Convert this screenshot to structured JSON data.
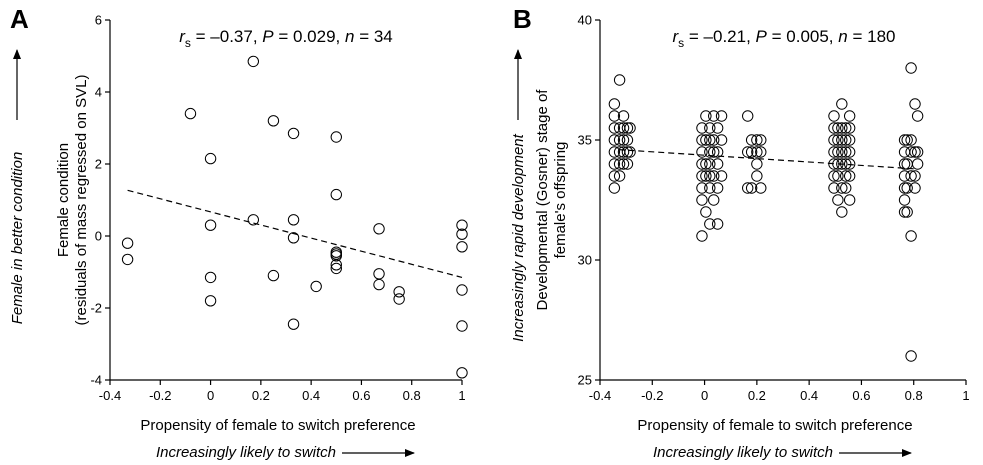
{
  "chart_data": [
    {
      "type": "scatter",
      "panel_label": "A",
      "stat_text": "r_s = –0.37, P = 0.029, n = 34",
      "stat": {
        "r_s": "–0.37",
        "P": "0.029",
        "n": "34"
      },
      "xlabel": "Propensity of female to switch preference",
      "xlabel_arrow": "Increasingly likely to switch",
      "ylabel_lines": [
        "Female condition",
        "(residuals of mass regressed on SVL)"
      ],
      "ylabel_arrow": "Female in better condition",
      "xlim": [
        -0.4,
        1.0
      ],
      "ylim": [
        -4,
        6
      ],
      "xticks": [
        "-0.4",
        "-0.2",
        "0",
        "0.2",
        "0.4",
        "0.6",
        "0.8",
        "1"
      ],
      "xtick_values": [
        -0.4,
        -0.2,
        0,
        0.2,
        0.4,
        0.6,
        0.8,
        1
      ],
      "yticks": [
        "-4",
        "-2",
        "0",
        "2",
        "4",
        "6"
      ],
      "ytick_values": [
        -4,
        -2,
        0,
        2,
        4,
        6
      ],
      "trend": {
        "x": [
          -0.33,
          1.0
        ],
        "y": [
          1.27,
          -1.15
        ]
      },
      "points": [
        [
          -0.33,
          -0.2
        ],
        [
          -0.33,
          -0.65
        ],
        [
          -0.08,
          3.4
        ],
        [
          0,
          2.15
        ],
        [
          0,
          0.3
        ],
        [
          0,
          -1.15
        ],
        [
          0,
          -1.8
        ],
        [
          0.17,
          4.85
        ],
        [
          0.17,
          0.45
        ],
        [
          0.25,
          3.2
        ],
        [
          0.25,
          -1.1
        ],
        [
          0.33,
          2.85
        ],
        [
          0.33,
          0.45
        ],
        [
          0.33,
          -0.05
        ],
        [
          0.33,
          -2.45
        ],
        [
          0.42,
          -1.4
        ],
        [
          0.5,
          2.75
        ],
        [
          0.5,
          1.15
        ],
        [
          0.5,
          -0.45
        ],
        [
          0.5,
          -0.55
        ],
        [
          0.5,
          -0.8
        ],
        [
          0.5,
          -0.9
        ],
        [
          0.67,
          0.2
        ],
        [
          0.67,
          -1.05
        ],
        [
          0.67,
          -1.35
        ],
        [
          0.75,
          -1.55
        ],
        [
          0.75,
          -1.75
        ],
        [
          1,
          0.3
        ],
        [
          1,
          0.05
        ],
        [
          1,
          -0.3
        ],
        [
          1,
          -1.5
        ],
        [
          1,
          -2.5
        ],
        [
          1,
          -3.8
        ],
        [
          0.5,
          -0.5
        ]
      ]
    },
    {
      "type": "scatter",
      "panel_label": "B",
      "stat_text": "r_s = –0.21, P = 0.005, n = 180",
      "stat": {
        "r_s": "–0.21",
        "P": "0.005",
        "n": "180"
      },
      "xlabel": "Propensity of female to switch preference",
      "xlabel_arrow": "Increasingly likely to switch",
      "ylabel_lines": [
        "Developmental (Gosner) stage of",
        "female's offspring"
      ],
      "ylabel_arrow": "Increasingly rapid development",
      "xlim": [
        -0.4,
        1.0
      ],
      "ylim": [
        25,
        40
      ],
      "xticks": [
        "-0.4",
        "-0.2",
        "0",
        "0.2",
        "0.4",
        "0.6",
        "0.8",
        "1"
      ],
      "xtick_values": [
        -0.4,
        -0.2,
        0,
        0.2,
        0.4,
        0.6,
        0.8,
        1
      ],
      "yticks": [
        "25",
        "30",
        "35",
        "40"
      ],
      "ytick_values": [
        25,
        30,
        35,
        40
      ],
      "trend": {
        "x": [
          -0.33,
          0.8
        ],
        "y": [
          34.6,
          33.8
        ]
      },
      "points": [
        [
          -0.345,
          36.5
        ],
        [
          -0.345,
          36.0
        ],
        [
          -0.345,
          35.5
        ],
        [
          -0.345,
          35.0
        ],
        [
          -0.345,
          34.5
        ],
        [
          -0.345,
          34.0
        ],
        [
          -0.345,
          33.5
        ],
        [
          -0.345,
          33.0
        ],
        [
          -0.325,
          37.5
        ],
        [
          -0.325,
          35.5
        ],
        [
          -0.325,
          35.0
        ],
        [
          -0.325,
          34.5
        ],
        [
          -0.325,
          34.0
        ],
        [
          -0.325,
          33.5
        ],
        [
          -0.31,
          36.0
        ],
        [
          -0.31,
          35.5
        ],
        [
          -0.31,
          35.0
        ],
        [
          -0.31,
          34.5
        ],
        [
          -0.31,
          34.0
        ],
        [
          -0.295,
          35.5
        ],
        [
          -0.295,
          35.0
        ],
        [
          -0.295,
          34.5
        ],
        [
          -0.295,
          34.0
        ],
        [
          -0.285,
          35.5
        ],
        [
          -0.285,
          34.5
        ],
        [
          -0.01,
          35.5
        ],
        [
          -0.01,
          35.0
        ],
        [
          -0.01,
          34.5
        ],
        [
          -0.01,
          34.0
        ],
        [
          -0.01,
          33.5
        ],
        [
          -0.01,
          33.0
        ],
        [
          -0.01,
          32.5
        ],
        [
          -0.01,
          31.0
        ],
        [
          0.005,
          36.0
        ],
        [
          0.005,
          35.0
        ],
        [
          0.005,
          34.0
        ],
        [
          0.005,
          33.5
        ],
        [
          0.005,
          32.0
        ],
        [
          0.02,
          35.5
        ],
        [
          0.02,
          35.0
        ],
        [
          0.02,
          34.5
        ],
        [
          0.02,
          34.0
        ],
        [
          0.02,
          33.5
        ],
        [
          0.02,
          33.0
        ],
        [
          0.02,
          31.5
        ],
        [
          0.035,
          36.0
        ],
        [
          0.035,
          35.0
        ],
        [
          0.035,
          34.5
        ],
        [
          0.035,
          33.5
        ],
        [
          0.035,
          32.5
        ],
        [
          0.05,
          35.5
        ],
        [
          0.05,
          34.5
        ],
        [
          0.05,
          34.0
        ],
        [
          0.05,
          33.0
        ],
        [
          0.05,
          31.5
        ],
        [
          0.065,
          36.0
        ],
        [
          0.065,
          35.0
        ],
        [
          0.065,
          33.5
        ],
        [
          0.165,
          36.0
        ],
        [
          0.165,
          34.5
        ],
        [
          0.165,
          33.0
        ],
        [
          0.18,
          35.0
        ],
        [
          0.18,
          34.5
        ],
        [
          0.18,
          33.0
        ],
        [
          0.2,
          35.0
        ],
        [
          0.2,
          34.5
        ],
        [
          0.2,
          34.0
        ],
        [
          0.2,
          33.5
        ],
        [
          0.215,
          35.0
        ],
        [
          0.215,
          34.5
        ],
        [
          0.215,
          33.0
        ],
        [
          0.495,
          36.0
        ],
        [
          0.495,
          35.5
        ],
        [
          0.495,
          35.0
        ],
        [
          0.495,
          34.5
        ],
        [
          0.495,
          34.0
        ],
        [
          0.495,
          33.5
        ],
        [
          0.495,
          33.0
        ],
        [
          0.51,
          35.5
        ],
        [
          0.51,
          35.0
        ],
        [
          0.51,
          34.5
        ],
        [
          0.51,
          34.0
        ],
        [
          0.51,
          33.5
        ],
        [
          0.51,
          32.5
        ],
        [
          0.525,
          36.5
        ],
        [
          0.525,
          35.5
        ],
        [
          0.525,
          35.0
        ],
        [
          0.525,
          34.5
        ],
        [
          0.525,
          34.0
        ],
        [
          0.525,
          33.0
        ],
        [
          0.525,
          32.0
        ],
        [
          0.54,
          35.5
        ],
        [
          0.54,
          35.0
        ],
        [
          0.54,
          34.5
        ],
        [
          0.54,
          34.0
        ],
        [
          0.54,
          33.5
        ],
        [
          0.54,
          33.0
        ],
        [
          0.555,
          36.0
        ],
        [
          0.555,
          35.5
        ],
        [
          0.555,
          35.0
        ],
        [
          0.555,
          34.5
        ],
        [
          0.555,
          34.0
        ],
        [
          0.555,
          33.5
        ],
        [
          0.555,
          32.5
        ],
        [
          0.765,
          35.0
        ],
        [
          0.765,
          34.5
        ],
        [
          0.765,
          34.0
        ],
        [
          0.765,
          33.5
        ],
        [
          0.765,
          33.0
        ],
        [
          0.765,
          32.5
        ],
        [
          0.765,
          32.0
        ],
        [
          0.775,
          35.0
        ],
        [
          0.775,
          34.0
        ],
        [
          0.775,
          33.0
        ],
        [
          0.775,
          32.0
        ],
        [
          0.79,
          38.0
        ],
        [
          0.79,
          35.0
        ],
        [
          0.79,
          34.5
        ],
        [
          0.79,
          33.5
        ],
        [
          0.79,
          31.0
        ],
        [
          0.79,
          26.0
        ],
        [
          0.805,
          36.5
        ],
        [
          0.805,
          34.5
        ],
        [
          0.805,
          33.5
        ],
        [
          0.805,
          33.0
        ],
        [
          0.815,
          36.0
        ],
        [
          0.815,
          34.5
        ],
        [
          0.815,
          34.0
        ]
      ]
    }
  ]
}
